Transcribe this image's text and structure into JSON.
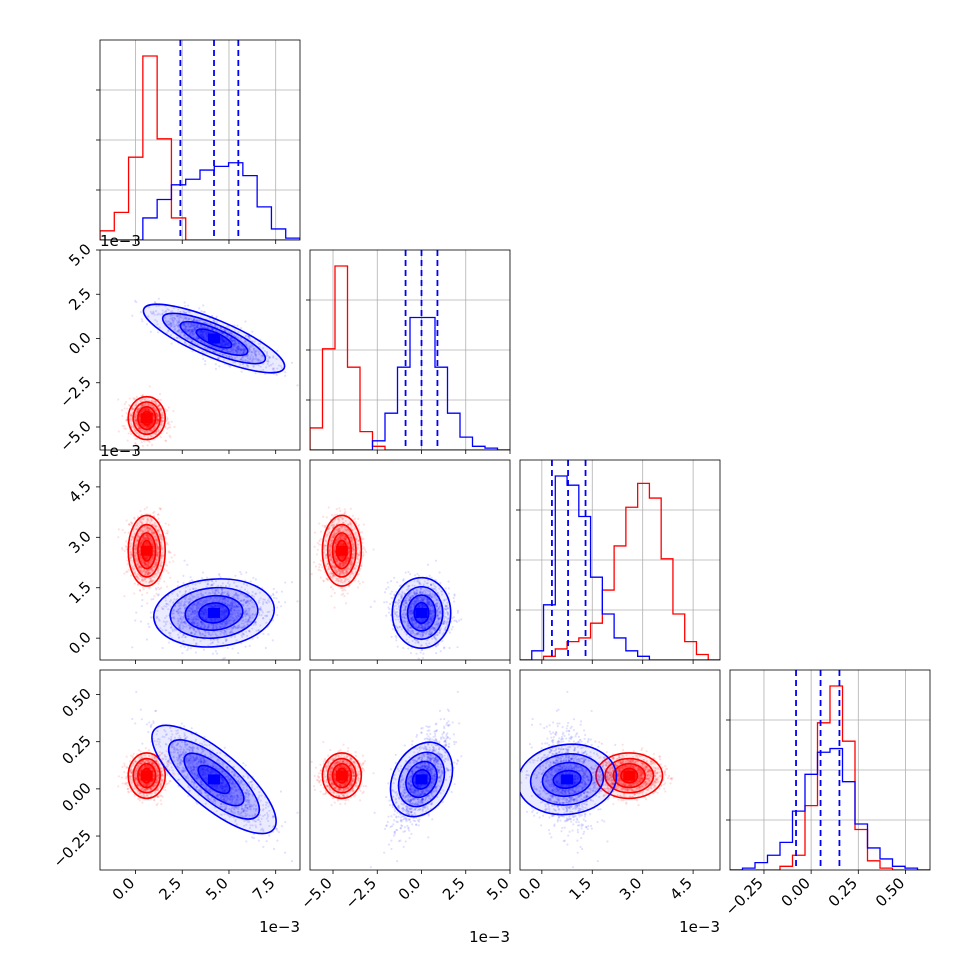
{
  "figure": {
    "description_free": true
  },
  "colors": {
    "red": "#ff0000",
    "blue": "#0000ff",
    "grid": "#b0b0b0",
    "axis": "#000000"
  },
  "chart_data": {
    "type": "scatter",
    "layout": "corner-plot",
    "parameters": [
      {
        "ticks": [
          0.0,
          2.5,
          5.0,
          7.5
        ],
        "tick_labels": [
          "0.0",
          "2.5",
          "5.0",
          "7.5"
        ],
        "range": [
          -1.9,
          8.8
        ],
        "offset_label": "1e−3"
      },
      {
        "ticks": [
          -5.0,
          -2.5,
          0.0,
          2.5,
          5.0
        ],
        "tick_labels": [
          "−5.0",
          "−2.5",
          "0.0",
          "2.5",
          "5.0"
        ],
        "range": [
          -6.3,
          5.0
        ],
        "offset_label": "1e−3"
      },
      {
        "ticks": [
          0.0,
          1.5,
          3.0,
          4.5
        ],
        "tick_labels": [
          "0.0",
          "1.5",
          "3.0",
          "4.5"
        ],
        "range": [
          -0.65,
          5.3
        ],
        "offset_label": "1e−3"
      },
      {
        "ticks": [
          -0.25,
          0.0,
          0.25,
          0.5
        ],
        "tick_labels": [
          "−0.25",
          "0.00",
          "0.25",
          "0.50"
        ],
        "range": [
          -0.43,
          0.63
        ],
        "offset_label": ""
      }
    ],
    "series": [
      {
        "color": "#ff0000",
        "means": [
          0.6,
          -4.5,
          2.6,
          0.07
        ],
        "sds": [
          0.45,
          0.5,
          0.45,
          0.05
        ],
        "corr": [
          [
            0,
            0,
            0,
            0
          ],
          [
            0,
            0,
            0,
            0
          ],
          [
            0,
            0,
            0,
            0
          ],
          [
            0,
            0,
            0,
            0
          ]
        ],
        "hist_peaks": [
          0.32,
          0.36,
          0.0,
          0.0
        ]
      },
      {
        "color": "#0000ff",
        "means": [
          4.2,
          0.0,
          0.75,
          0.05
        ],
        "sds": [
          1.4,
          0.75,
          0.45,
          0.12
        ],
        "corr": [
          [
            0,
            -0.75,
            0.1,
            -0.82
          ],
          [
            -0.75,
            0,
            0,
            0.8
          ],
          [
            0.1,
            0,
            0,
            -0.1
          ],
          [
            -0.82,
            0.8,
            -0.1,
            0
          ]
        ],
        "quantiles": [
          [
            2.4,
            4.2,
            5.5
          ],
          [
            -0.9,
            0.0,
            0.9
          ],
          [
            0.3,
            0.78,
            1.3
          ],
          [
            -0.08,
            0.05,
            0.15
          ]
        ]
      }
    ],
    "diag_histograms": [
      {
        "red": [
          0.05,
          0.15,
          0.45,
          1.0,
          0.55,
          0.12,
          0.0,
          0.0,
          0.0,
          0.0,
          0.0,
          0.0,
          0.0,
          0.0
        ],
        "blue": [
          0.0,
          0.0,
          0.0,
          0.12,
          0.22,
          0.3,
          0.33,
          0.38,
          0.4,
          0.42,
          0.35,
          0.18,
          0.06,
          0.01
        ],
        "bins": [
          -1.9,
          8.8
        ]
      },
      {
        "red": [
          0.12,
          0.55,
          1.0,
          0.45,
          0.1,
          0.02,
          0.0,
          0.0,
          0.0,
          0.0,
          0.0,
          0.0,
          0.0,
          0.0,
          0.0,
          0.0
        ],
        "blue": [
          0.0,
          0.0,
          0.0,
          0.0,
          0.0,
          0.05,
          0.2,
          0.45,
          0.72,
          0.72,
          0.45,
          0.2,
          0.07,
          0.02,
          0.01,
          0.0
        ],
        "bins": [
          -6.3,
          5.0
        ]
      },
      {
        "red": [
          0.0,
          0.0,
          0.02,
          0.06,
          0.1,
          0.12,
          0.2,
          0.38,
          0.62,
          0.83,
          0.96,
          0.88,
          0.55,
          0.25,
          0.1,
          0.03,
          0.0
        ],
        "blue": [
          0.0,
          0.05,
          0.3,
          1.0,
          0.95,
          0.78,
          0.45,
          0.25,
          0.12,
          0.05,
          0.02,
          0.0,
          0.0,
          0.0,
          0.0,
          0.0,
          0.0
        ],
        "bins": [
          -0.65,
          5.3
        ]
      },
      {
        "red": [
          0.0,
          0.0,
          0.0,
          0.0,
          0.02,
          0.08,
          0.35,
          0.8,
          1.0,
          0.7,
          0.22,
          0.05,
          0.01,
          0.0,
          0.0,
          0.0
        ],
        "blue": [
          0.0,
          0.01,
          0.04,
          0.08,
          0.15,
          0.32,
          0.52,
          0.64,
          0.66,
          0.48,
          0.25,
          0.12,
          0.06,
          0.02,
          0.01,
          0.0
        ],
        "bins": [
          -0.43,
          0.63
        ]
      }
    ]
  }
}
